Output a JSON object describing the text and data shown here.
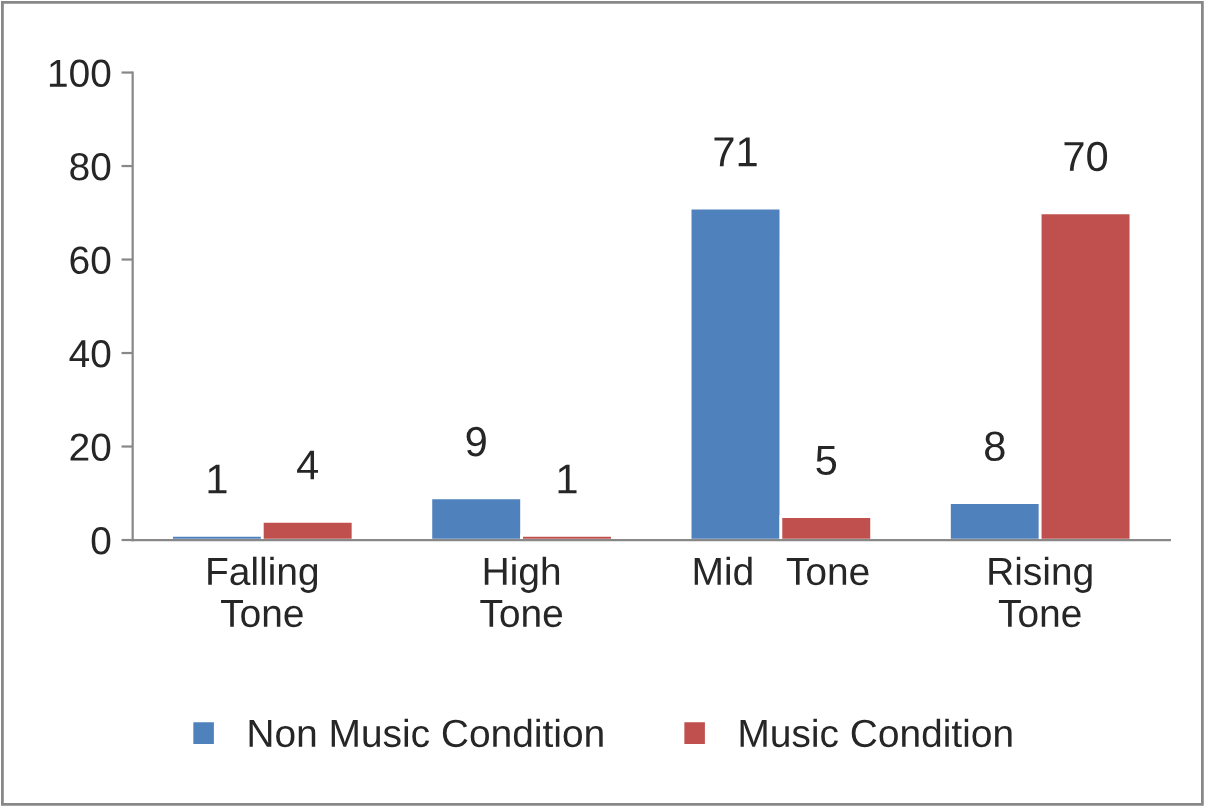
{
  "chart_data": {
    "type": "bar",
    "categories": [
      "Falling\nTone",
      "High\nTone",
      "Mid   Tone",
      "Rising\nTone"
    ],
    "series": [
      {
        "name": "Non Music Condition",
        "color": "#4f81bd",
        "values": [
          1,
          9,
          71,
          8
        ]
      },
      {
        "name": "Music Condition",
        "color": "#c0504d",
        "values": [
          4,
          1,
          5,
          70
        ]
      }
    ],
    "ylim": [
      0,
      100
    ],
    "yticks": [
      0,
      20,
      40,
      60,
      80,
      100
    ],
    "grid": false,
    "legend": "bottom",
    "data_labels": true
  }
}
